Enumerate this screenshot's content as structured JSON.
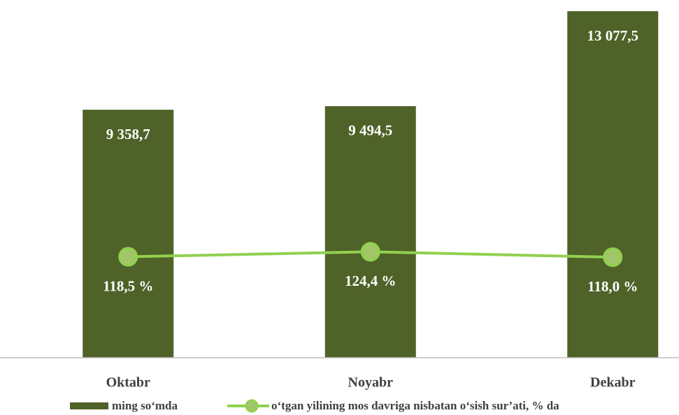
{
  "chart_data": {
    "type": "bar+line",
    "categories": [
      "Oktabr",
      "Noyabr",
      "Dekabr"
    ],
    "series": [
      {
        "name": "ming so‘mda",
        "type": "bar",
        "color": "#4f6228",
        "values": [
          9358.7,
          9494.5,
          13077.5
        ],
        "value_labels": [
          "9 358,7",
          "9 494,5",
          "13 077,5"
        ]
      },
      {
        "name": "o‘tgan yilining mos davriga nisbatan o‘sish sur’ati, % da",
        "type": "line",
        "axis": "y2",
        "color": "#92d050",
        "values": [
          118.5,
          124.4,
          118.0
        ],
        "value_labels": [
          "118,5 %",
          "124,4 %",
          "118,0 %"
        ]
      }
    ],
    "ylim": [
      0,
      13500
    ],
    "y2lim": [
      0,
      420
    ],
    "legend": "bottom"
  }
}
